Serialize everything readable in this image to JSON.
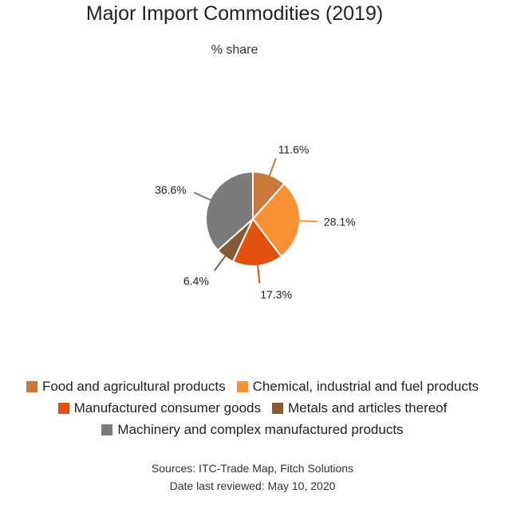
{
  "chart_data": {
    "type": "pie",
    "title": "Major Import Commodities (2019)",
    "subtitle": "% share",
    "slices": [
      {
        "label": "Food and agricultural products",
        "value": 11.6,
        "display": "11.6%",
        "color": "#c8783a"
      },
      {
        "label": "Chemical, industrial and fuel products",
        "value": 28.1,
        "display": "28.1%",
        "color": "#f99134"
      },
      {
        "label": "Manufactured consumer goods",
        "value": 17.3,
        "display": "17.3%",
        "color": "#e3510f"
      },
      {
        "label": "Metals and articles thereof",
        "value": 6.4,
        "display": "6.4%",
        "color": "#875a35"
      },
      {
        "label": "Machinery and complex manufactured products",
        "value": 36.6,
        "display": "36.6%",
        "color": "#7b7b7b"
      }
    ],
    "legend_position": "bottom"
  },
  "footer": {
    "sources": "Sources: ITC-Trade Map, Fitch Solutions",
    "reviewed": "Date last reviewed: May 10, 2020"
  }
}
